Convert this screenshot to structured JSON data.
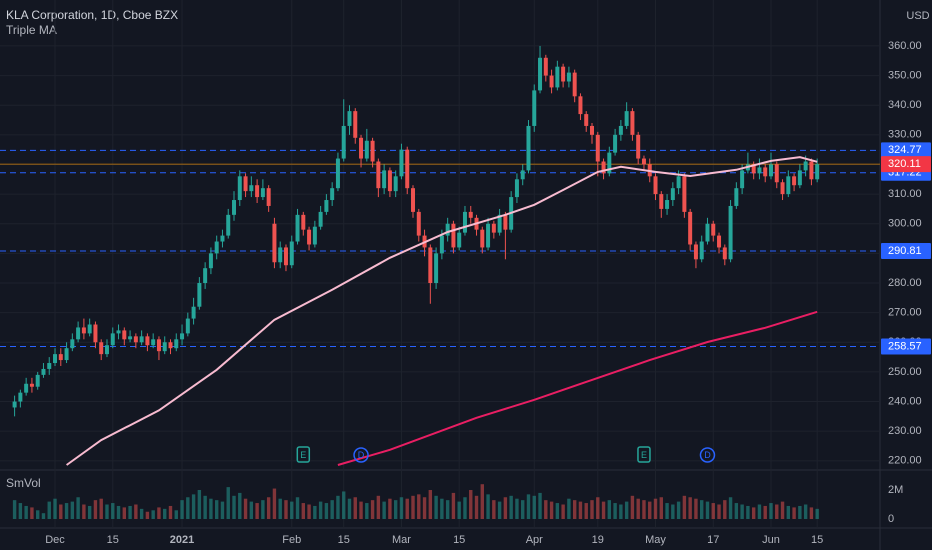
{
  "header": {
    "title": "KLA Corporation, 1D, Cboe BZX",
    "indicator": "Triple MA",
    "currency": "USD"
  },
  "chart_data": {
    "type": "candlestick",
    "categories": [
      null,
      null,
      null,
      null,
      null,
      null,
      null,
      "Dec",
      null,
      null,
      null,
      null,
      null,
      null,
      null,
      null,
      null,
      "15",
      null,
      null,
      null,
      null,
      null,
      null,
      null,
      null,
      null,
      null,
      null,
      "2021",
      null,
      null,
      null,
      null,
      null,
      null,
      null,
      null,
      null,
      null,
      null,
      null,
      null,
      null,
      null,
      null,
      null,
      null,
      "Feb",
      null,
      null,
      null,
      null,
      null,
      null,
      null,
      null,
      "15",
      null,
      null,
      null,
      null,
      null,
      null,
      null,
      null,
      null,
      "Mar",
      null,
      null,
      null,
      null,
      null,
      null,
      null,
      null,
      null,
      "15",
      null,
      null,
      null,
      null,
      null,
      null,
      null,
      null,
      null,
      null,
      null,
      null,
      "Apr",
      null,
      null,
      null,
      null,
      null,
      null,
      null,
      null,
      null,
      null,
      "19",
      null,
      null,
      null,
      null,
      null,
      null,
      null,
      null,
      null,
      "May",
      null,
      null,
      null,
      null,
      null,
      null,
      null,
      null,
      null,
      "17",
      null,
      null,
      null,
      null,
      null,
      null,
      null,
      null,
      null,
      "Jun",
      null,
      null,
      null,
      null,
      null,
      null,
      null,
      "15"
    ],
    "candles": [
      [
        238,
        242,
        235,
        240
      ],
      [
        240,
        244,
        238,
        243
      ],
      [
        243,
        248,
        242,
        246
      ],
      [
        246,
        248,
        243,
        245
      ],
      [
        245,
        250,
        244,
        249
      ],
      [
        249,
        253,
        248,
        251
      ],
      [
        251,
        255,
        249,
        253
      ],
      [
        253,
        258,
        252,
        256
      ],
      [
        256,
        258,
        252,
        254
      ],
      [
        254,
        260,
        253,
        258
      ],
      [
        258,
        263,
        257,
        261
      ],
      [
        261,
        267,
        260,
        265
      ],
      [
        265,
        268,
        261,
        263
      ],
      [
        263,
        268,
        262,
        266
      ],
      [
        266,
        267,
        258,
        260
      ],
      [
        260,
        261,
        254,
        256
      ],
      [
        256,
        261,
        255,
        259
      ],
      [
        259,
        265,
        258,
        263
      ],
      [
        263,
        266,
        261,
        264
      ],
      [
        264,
        265,
        259,
        261
      ],
      [
        261,
        264,
        260,
        262
      ],
      [
        262,
        263,
        258,
        260
      ],
      [
        260,
        264,
        259,
        262
      ],
      [
        262,
        263,
        257,
        259
      ],
      [
        259,
        263,
        258,
        261
      ],
      [
        261,
        262,
        254,
        257
      ],
      [
        257,
        262,
        256,
        260
      ],
      [
        260,
        261,
        256,
        258
      ],
      [
        258,
        263,
        257,
        261
      ],
      [
        261,
        266,
        259,
        263
      ],
      [
        263,
        270,
        262,
        268
      ],
      [
        268,
        275,
        266,
        272
      ],
      [
        272,
        282,
        271,
        280
      ],
      [
        280,
        287,
        278,
        285
      ],
      [
        285,
        292,
        283,
        290
      ],
      [
        290,
        296,
        288,
        294
      ],
      [
        294,
        298,
        292,
        296
      ],
      [
        296,
        305,
        295,
        303
      ],
      [
        303,
        311,
        301,
        308
      ],
      [
        308,
        318,
        306,
        316
      ],
      [
        316,
        317,
        309,
        311
      ],
      [
        311,
        316,
        309,
        313
      ],
      [
        313,
        315,
        307,
        309
      ],
      [
        309,
        315,
        308,
        312
      ],
      [
        312,
        313,
        304,
        306
      ],
      [
        300,
        302,
        285,
        287
      ],
      [
        287,
        294,
        285,
        292
      ],
      [
        292,
        293,
        284,
        286
      ],
      [
        286,
        296,
        285,
        294
      ],
      [
        294,
        305,
        293,
        303
      ],
      [
        303,
        304,
        296,
        298
      ],
      [
        298,
        299,
        291,
        293
      ],
      [
        293,
        301,
        292,
        299
      ],
      [
        299,
        306,
        298,
        304
      ],
      [
        304,
        310,
        303,
        308
      ],
      [
        308,
        314,
        306,
        312
      ],
      [
        312,
        324,
        311,
        322
      ],
      [
        322,
        342,
        321,
        333
      ],
      [
        333,
        340,
        330,
        338
      ],
      [
        338,
        339,
        327,
        329
      ],
      [
        329,
        330,
        319,
        322
      ],
      [
        322,
        332,
        321,
        328
      ],
      [
        328,
        329,
        319,
        321
      ],
      [
        321,
        322,
        309,
        312
      ],
      [
        312,
        320,
        310,
        318
      ],
      [
        318,
        319,
        309,
        311
      ],
      [
        311,
        318,
        309,
        316
      ],
      [
        316,
        327,
        315,
        325
      ],
      [
        325,
        326,
        310,
        312
      ],
      [
        312,
        313,
        302,
        304
      ],
      [
        304,
        305,
        294,
        296
      ],
      [
        296,
        298,
        289,
        292
      ],
      [
        292,
        293,
        273,
        280
      ],
      [
        280,
        292,
        278,
        290
      ],
      [
        290,
        298,
        288,
        296
      ],
      [
        296,
        302,
        294,
        300
      ],
      [
        300,
        301,
        290,
        292
      ],
      [
        292,
        299,
        291,
        297
      ],
      [
        297,
        306,
        296,
        304
      ],
      [
        304,
        306,
        300,
        302
      ],
      [
        302,
        303,
        296,
        298
      ],
      [
        298,
        299,
        290,
        292
      ],
      [
        292,
        302,
        291,
        300
      ],
      [
        300,
        301,
        295,
        297
      ],
      [
        297,
        305,
        296,
        303
      ],
      [
        303,
        304,
        288,
        298
      ],
      [
        298,
        311,
        297,
        309
      ],
      [
        309,
        317,
        307,
        315
      ],
      [
        315,
        320,
        313,
        318
      ],
      [
        318,
        335,
        317,
        333
      ],
      [
        333,
        347,
        331,
        345
      ],
      [
        345,
        360,
        344,
        356
      ],
      [
        356,
        357,
        348,
        350
      ],
      [
        350,
        352,
        344,
        346
      ],
      [
        346,
        355,
        345,
        353
      ],
      [
        353,
        354,
        346,
        348
      ],
      [
        348,
        353,
        346,
        351
      ],
      [
        351,
        352,
        341,
        343
      ],
      [
        343,
        344,
        335,
        337
      ],
      [
        337,
        338,
        331,
        333
      ],
      [
        333,
        334,
        327,
        330
      ],
      [
        330,
        331,
        316,
        321
      ],
      [
        321,
        322,
        315,
        317
      ],
      [
        317,
        326,
        316,
        324
      ],
      [
        324,
        332,
        323,
        330
      ],
      [
        330,
        335,
        328,
        333
      ],
      [
        333,
        341,
        332,
        338
      ],
      [
        338,
        339,
        328,
        330
      ],
      [
        330,
        331,
        320,
        322
      ],
      [
        322,
        323,
        318,
        320
      ],
      [
        320,
        322,
        314,
        316
      ],
      [
        316,
        317,
        308,
        310
      ],
      [
        310,
        311,
        302,
        305
      ],
      [
        305,
        310,
        303,
        308
      ],
      [
        308,
        314,
        306,
        312
      ],
      [
        312,
        318,
        310,
        316
      ],
      [
        316,
        317,
        302,
        304
      ],
      [
        304,
        305,
        291,
        293
      ],
      [
        293,
        294,
        285,
        288
      ],
      [
        288,
        296,
        287,
        294
      ],
      [
        294,
        302,
        293,
        300
      ],
      [
        300,
        301,
        294,
        296
      ],
      [
        296,
        297,
        290,
        292
      ],
      [
        292,
        293,
        286,
        288
      ],
      [
        288,
        308,
        287,
        306
      ],
      [
        306,
        314,
        305,
        312
      ],
      [
        312,
        320,
        310,
        318
      ],
      [
        318,
        324,
        317,
        320
      ],
      [
        320,
        321,
        315,
        317
      ],
      [
        317,
        322,
        315,
        319
      ],
      [
        319,
        320,
        314,
        316
      ],
      [
        316,
        324,
        315,
        320
      ],
      [
        320,
        321,
        312,
        314
      ],
      [
        314,
        315,
        308,
        310
      ],
      [
        310,
        318,
        309,
        316
      ],
      [
        316,
        317,
        311,
        313
      ],
      [
        313,
        320,
        312,
        318
      ],
      [
        318,
        323,
        316,
        321
      ],
      [
        321,
        322,
        313,
        315
      ],
      [
        315,
        322,
        314,
        320.11
      ]
    ],
    "ylim": [
      216.9,
      375.5
    ],
    "yticks": [
      {
        "value": 220,
        "label": "220.00"
      },
      {
        "value": 230,
        "label": "230.00"
      },
      {
        "value": 240,
        "label": "240.00"
      },
      {
        "value": 250,
        "label": "250.00"
      },
      {
        "value": 260,
        "label": "260.00"
      },
      {
        "value": 270,
        "label": "270.00"
      },
      {
        "value": 280,
        "label": "280.00"
      },
      {
        "value": 290,
        "label": "290.00"
      },
      {
        "value": 300,
        "label": "300.00"
      },
      {
        "value": 310,
        "label": "310.00"
      },
      {
        "value": 320,
        "label": "320.00"
      },
      {
        "value": 330,
        "label": "330.00"
      },
      {
        "value": 340,
        "label": "340.00"
      },
      {
        "value": 350,
        "label": "350.00"
      },
      {
        "value": 360,
        "label": "360.00"
      }
    ],
    "grid": true,
    "up_color": "#26a69a",
    "down_color": "#ef5350",
    "moving_averages": [
      {
        "color": "#f8bbd0",
        "x": [
          9,
          15,
          25,
          35,
          45,
          55,
          65,
          75,
          85,
          90,
          95,
          101,
          105,
          111,
          117,
          125,
          131,
          136,
          139
        ],
        "values": [
          218.6,
          227,
          237,
          250.7,
          267.6,
          277.7,
          288.5,
          297.2,
          303,
          306.4,
          311.4,
          317.5,
          319.2,
          317.5,
          316.1,
          318.2,
          321.2,
          322.5,
          320.9
        ]
      },
      {
        "color": "#e91e63",
        "x": [
          56,
          65,
          80,
          90,
          100,
          110,
          120,
          130,
          139
        ],
        "values": [
          218.6,
          223.7,
          234.5,
          240.6,
          247.3,
          254,
          260.1,
          264.9,
          270.3
        ]
      }
    ],
    "levels": [
      324.77,
      317.22,
      290.81,
      258.57
    ],
    "level_color": "#2962ff",
    "last_price_color": "#f23645",
    "events": [
      {
        "label": "E",
        "index": 50
      },
      {
        "label": "D",
        "index": 60
      },
      {
        "label": "E",
        "index": 109
      },
      {
        "label": "D",
        "index": 120
      }
    ],
    "volume": {
      "title": "SmVol",
      "ylim": [
        0,
        3.38
      ],
      "yticks": [
        0,
        {
          "value": 2,
          "label": "2M"
        }
      ],
      "values": [
        1.3,
        1.1,
        0.9,
        0.8,
        0.6,
        0.4,
        1.2,
        1.4,
        1.0,
        1.1,
        1.2,
        1.5,
        1.0,
        0.9,
        1.3,
        1.4,
        1.0,
        1.1,
        0.9,
        0.8,
        0.9,
        1.0,
        0.7,
        0.5,
        0.6,
        0.8,
        0.7,
        0.9,
        0.6,
        1.3,
        1.5,
        1.7,
        2.0,
        1.6,
        1.4,
        1.3,
        1.2,
        2.2,
        1.6,
        1.8,
        1.4,
        1.2,
        1.1,
        1.3,
        1.5,
        2.1,
        1.4,
        1.3,
        1.2,
        1.5,
        1.1,
        1.0,
        0.9,
        1.2,
        1.1,
        1.3,
        1.6,
        1.9,
        1.4,
        1.5,
        1.2,
        1.1,
        1.3,
        1.6,
        1.2,
        1.4,
        1.3,
        1.5,
        1.4,
        1.6,
        1.7,
        1.5,
        2.0,
        1.6,
        1.4,
        1.3,
        1.8,
        1.2,
        1.5,
        2.0,
        1.6,
        2.4,
        1.7,
        1.3,
        1.2,
        1.5,
        1.6,
        1.4,
        1.3,
        1.7,
        1.6,
        1.8,
        1.3,
        1.2,
        1.1,
        1.0,
        1.4,
        1.3,
        1.2,
        1.1,
        1.3,
        1.5,
        1.2,
        1.3,
        1.1,
        1.0,
        1.2,
        1.6,
        1.4,
        1.3,
        1.2,
        1.4,
        1.5,
        1.1,
        1.0,
        1.2,
        1.6,
        1.5,
        1.4,
        1.3,
        1.2,
        1.1,
        1.0,
        1.3,
        1.5,
        1.1,
        1.0,
        0.9,
        0.8,
        1.0,
        0.9,
        1.1,
        1.0,
        1.2,
        0.9,
        0.8,
        0.9,
        1.0,
        0.8,
        0.7
      ]
    }
  }
}
